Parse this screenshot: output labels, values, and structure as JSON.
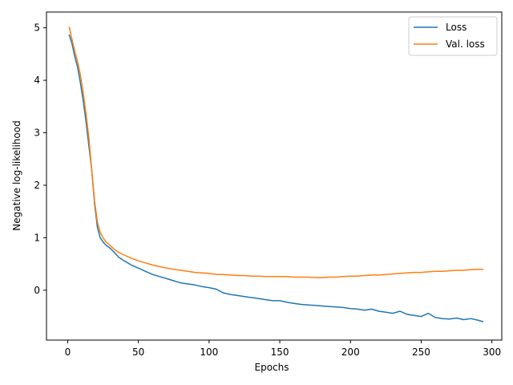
{
  "chart_data": {
    "type": "line",
    "title": "",
    "xlabel": "Epochs",
    "ylabel": "Negative log-likelihood",
    "xlim": [
      -15,
      307
    ],
    "ylim": [
      -0.95,
      5.3
    ],
    "xticks": [
      0,
      50,
      100,
      150,
      200,
      250,
      300
    ],
    "yticks": [
      0,
      1,
      2,
      3,
      4,
      5
    ],
    "grid": false,
    "legend_position": "top-right",
    "series": [
      {
        "name": "Loss",
        "color": "#1f77b4",
        "x": [
          1,
          3,
          5,
          7,
          9,
          11,
          13,
          15,
          17,
          19,
          21,
          23,
          25,
          27,
          30,
          33,
          36,
          40,
          45,
          50,
          55,
          60,
          65,
          70,
          75,
          80,
          85,
          90,
          95,
          100,
          105,
          110,
          115,
          120,
          125,
          130,
          135,
          140,
          145,
          150,
          155,
          160,
          165,
          170,
          175,
          180,
          185,
          190,
          195,
          200,
          205,
          210,
          215,
          220,
          225,
          230,
          235,
          240,
          245,
          250,
          255,
          260,
          265,
          270,
          275,
          280,
          285,
          290,
          294
        ],
        "y": [
          4.87,
          4.7,
          4.45,
          4.25,
          3.95,
          3.6,
          3.2,
          2.75,
          2.3,
          1.65,
          1.2,
          1.0,
          0.92,
          0.86,
          0.8,
          0.72,
          0.63,
          0.56,
          0.48,
          0.42,
          0.36,
          0.3,
          0.26,
          0.22,
          0.18,
          0.14,
          0.12,
          0.1,
          0.07,
          0.05,
          0.02,
          -0.05,
          -0.08,
          -0.1,
          -0.12,
          -0.14,
          -0.16,
          -0.18,
          -0.2,
          -0.2,
          -0.23,
          -0.25,
          -0.27,
          -0.28,
          -0.29,
          -0.3,
          -0.31,
          -0.32,
          -0.33,
          -0.35,
          -0.36,
          -0.38,
          -0.36,
          -0.4,
          -0.42,
          -0.44,
          -0.4,
          -0.46,
          -0.48,
          -0.5,
          -0.44,
          -0.52,
          -0.54,
          -0.55,
          -0.53,
          -0.56,
          -0.54,
          -0.57,
          -0.6
        ]
      },
      {
        "name": "Val. loss",
        "color": "#ff7f0e",
        "x": [
          1,
          3,
          5,
          7,
          9,
          11,
          13,
          15,
          17,
          19,
          21,
          23,
          25,
          27,
          30,
          33,
          36,
          40,
          45,
          50,
          55,
          60,
          65,
          70,
          75,
          80,
          85,
          90,
          95,
          100,
          105,
          110,
          115,
          120,
          125,
          130,
          135,
          140,
          145,
          150,
          155,
          160,
          165,
          170,
          175,
          180,
          185,
          190,
          195,
          200,
          205,
          210,
          215,
          220,
          225,
          230,
          235,
          240,
          245,
          250,
          255,
          260,
          265,
          270,
          275,
          280,
          285,
          290,
          294
        ],
        "y": [
          5.02,
          4.78,
          4.55,
          4.35,
          4.1,
          3.75,
          3.35,
          2.9,
          2.3,
          1.7,
          1.3,
          1.1,
          1.0,
          0.92,
          0.85,
          0.78,
          0.72,
          0.67,
          0.61,
          0.56,
          0.52,
          0.48,
          0.45,
          0.42,
          0.4,
          0.38,
          0.36,
          0.34,
          0.33,
          0.32,
          0.3,
          0.3,
          0.29,
          0.28,
          0.28,
          0.27,
          0.27,
          0.26,
          0.26,
          0.26,
          0.26,
          0.25,
          0.25,
          0.25,
          0.24,
          0.24,
          0.25,
          0.25,
          0.26,
          0.27,
          0.27,
          0.28,
          0.29,
          0.29,
          0.3,
          0.31,
          0.32,
          0.33,
          0.34,
          0.34,
          0.35,
          0.36,
          0.36,
          0.37,
          0.38,
          0.38,
          0.39,
          0.4,
          0.4
        ]
      }
    ]
  }
}
